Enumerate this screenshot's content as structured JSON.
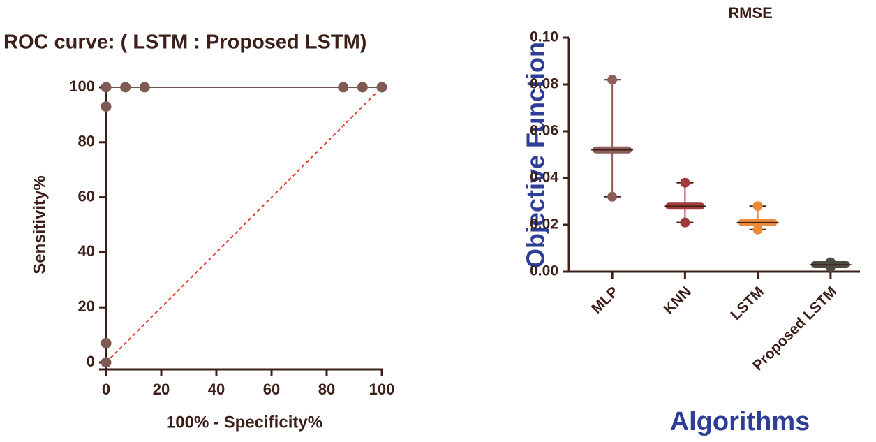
{
  "chart_data": [
    {
      "type": "roc",
      "title": "ROC curve: ( LSTM : Proposed LSTM)",
      "x_label": "100% - Specificity%",
      "y_label": "Sensitivity%",
      "x": [
        0,
        0,
        0,
        0,
        7,
        14,
        86,
        93,
        100
      ],
      "series": [
        {
          "name": "ROC",
          "color": "#7f5a55",
          "values": [
            0,
            7,
            93,
            100,
            100,
            100,
            100,
            100,
            100
          ]
        }
      ],
      "reference_color": "#e03a2a",
      "xlim": [
        0,
        100
      ],
      "ylim": [
        0,
        100
      ],
      "xticks": [
        0,
        20,
        40,
        60,
        80,
        100
      ],
      "yticks": [
        0,
        20,
        40,
        60,
        80,
        100
      ]
    },
    {
      "type": "range",
      "title": "RMSE",
      "x_label": "Algorithms",
      "y_label": "Objective Function",
      "categories": [
        "MLP",
        "KNN",
        "LSTM",
        "Proposed LSTM"
      ],
      "colors": [
        "#8b5e57",
        "#a33a3a",
        "#ec8a3c",
        "#4d4a40"
      ],
      "min": [
        0.032,
        0.021,
        0.018,
        0.002
      ],
      "max": [
        0.082,
        0.038,
        0.028,
        0.004
      ],
      "median": [
        0.052,
        0.028,
        0.021,
        0.003
      ],
      "ylim": [
        0,
        0.1
      ],
      "yticks": [
        {
          "value": 0,
          "label": "0.00"
        },
        {
          "value": 0.02,
          "label": "0.02"
        },
        {
          "value": 0.04,
          "label": "0.04"
        },
        {
          "value": 0.06,
          "label": "0.06"
        },
        {
          "value": 0.08,
          "label": "0.08"
        },
        {
          "value": 0.1,
          "label": "0.10"
        }
      ]
    }
  ]
}
